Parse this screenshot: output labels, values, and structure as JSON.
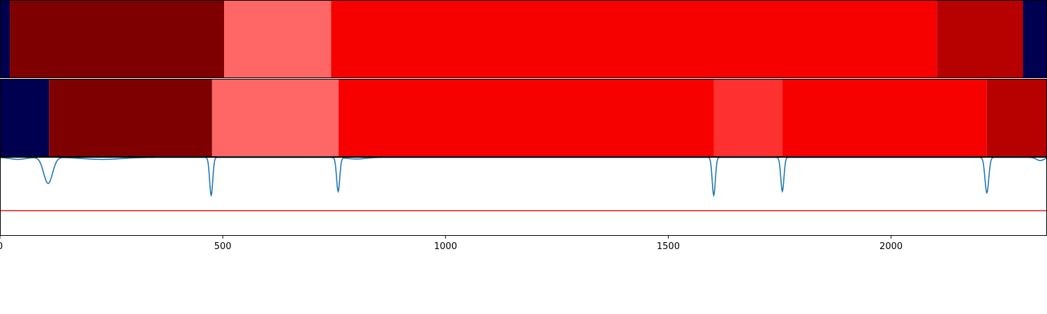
{
  "chart_data": [
    {
      "type": "heatmap",
      "panel": "segmentation-top",
      "xlim": [
        0,
        2350
      ],
      "segments": [
        {
          "start": 0,
          "end": 22,
          "color": "#000050"
        },
        {
          "start": 22,
          "end": 503,
          "color": "#7f0000"
        },
        {
          "start": 503,
          "end": 743,
          "color": "#ff6666"
        },
        {
          "start": 743,
          "end": 2103,
          "color": "#f70000"
        },
        {
          "start": 2103,
          "end": 2296,
          "color": "#b70000"
        },
        {
          "start": 2296,
          "end": 2350,
          "color": "#000050"
        }
      ]
    },
    {
      "type": "heatmap",
      "panel": "segmentation-bottom",
      "xlim": [
        0,
        2350
      ],
      "segments": [
        {
          "start": 0,
          "end": 110,
          "color": "#000050"
        },
        {
          "start": 110,
          "end": 476,
          "color": "#7f0000"
        },
        {
          "start": 476,
          "end": 760,
          "color": "#ff6666"
        },
        {
          "start": 760,
          "end": 1602,
          "color": "#f70000"
        },
        {
          "start": 1602,
          "end": 1756,
          "color": "#ff3030"
        },
        {
          "start": 1756,
          "end": 2215,
          "color": "#f70000"
        },
        {
          "start": 2215,
          "end": 2350,
          "color": "#b70000"
        }
      ]
    },
    {
      "type": "line",
      "panel": "score-curve",
      "xlim": [
        0,
        2350
      ],
      "ylim": [
        0,
        1
      ],
      "xticks": [
        0,
        500,
        1000,
        1500,
        2000
      ],
      "threshold": {
        "y": 0.32,
        "color": "#e41a1c"
      },
      "series_color": "#1f77b4",
      "baseline": 0.995,
      "dips": [
        {
          "x": 108,
          "depth": 0.33,
          "width": 14
        },
        {
          "x": 474,
          "depth": 0.48,
          "width": 5
        },
        {
          "x": 759,
          "depth": 0.43,
          "width": 5
        },
        {
          "x": 1602,
          "depth": 0.48,
          "width": 5
        },
        {
          "x": 1756,
          "depth": 0.43,
          "width": 5
        },
        {
          "x": 2215,
          "depth": 0.45,
          "width": 6
        }
      ],
      "shoulders": [
        {
          "x": 40,
          "depth": 0.025,
          "width": 25
        },
        {
          "x": 230,
          "depth": 0.025,
          "width": 60
        },
        {
          "x": 800,
          "depth": 0.02,
          "width": 30
        },
        {
          "x": 2335,
          "depth": 0.04,
          "width": 12
        }
      ]
    }
  ]
}
